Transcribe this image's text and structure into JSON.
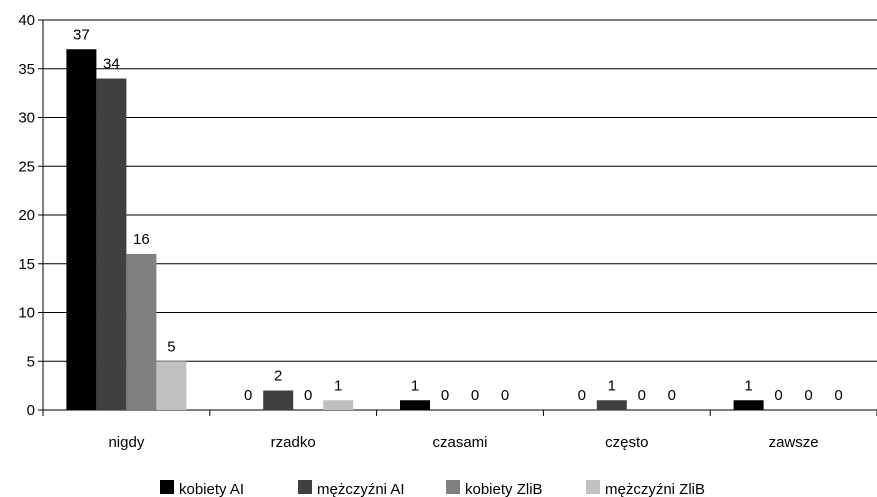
{
  "chart_data": {
    "type": "bar",
    "categories": [
      "nigdy",
      "rzadko",
      "czasami",
      "często",
      "zawsze"
    ],
    "series": [
      {
        "name": "kobiety AI",
        "values": [
          37,
          0,
          1,
          0,
          1
        ],
        "color": "#000000"
      },
      {
        "name": "mężczyźni AI",
        "values": [
          34,
          2,
          0,
          1,
          0
        ],
        "color": "#404040"
      },
      {
        "name": "kobiety ZliB",
        "values": [
          16,
          0,
          0,
          0,
          0
        ],
        "color": "#808080"
      },
      {
        "name": "mężczyźni ZliB",
        "values": [
          5,
          1,
          0,
          0,
          0
        ],
        "color": "#c0c0c0"
      }
    ],
    "ylim": [
      0,
      40
    ],
    "yticks": [
      0,
      5,
      10,
      15,
      20,
      25,
      30,
      35,
      40
    ],
    "grid": true,
    "legend": "bottom",
    "show_data_labels": true
  }
}
